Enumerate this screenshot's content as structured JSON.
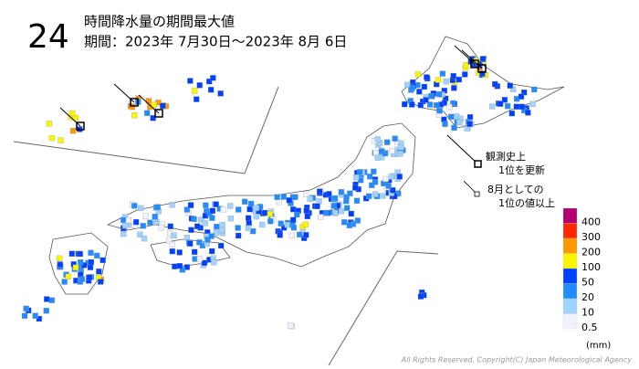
{
  "header": {
    "number": "24",
    "title": "時間降水量の期間最大値",
    "period": "期間：2023年 7月30日～2023年 8月 6日"
  },
  "notes": [
    {
      "lines": [
        "観測史上",
        "1位を更新"
      ]
    },
    {
      "lines": [
        "8月としての",
        "1位の値以上"
      ]
    }
  ],
  "legend": {
    "levels": [
      {
        "value": 400,
        "color": "#b4006e"
      },
      {
        "value": 300,
        "color": "#ff2800"
      },
      {
        "value": 200,
        "color": "#ff9900"
      },
      {
        "value": 100,
        "color": "#faf500"
      },
      {
        "value": 50,
        "color": "#0041ff"
      },
      {
        "value": 20,
        "color": "#218cff"
      },
      {
        "value": 10,
        "color": "#a0d2ff"
      },
      {
        "value": 0.5,
        "color": "#f2f2ff"
      }
    ],
    "unit": "(mm)"
  },
  "copyright": "All Rights Reserved, Copyright(C) Japan Meteorological Agency"
}
